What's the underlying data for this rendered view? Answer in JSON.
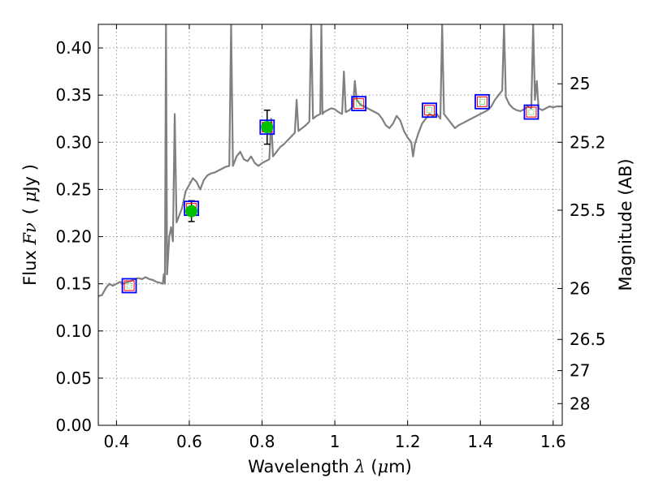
{
  "chart_data": {
    "type": "scatter",
    "xlabel": "Wavelength  λ (μm)",
    "ylabel": "Flux  Fν  ( μJy )",
    "ylabel_parts": {
      "prefix": "Flux ",
      "symbol": "Fν",
      "unit_open": "( ",
      "mu": "μ",
      "unit_rest": "Jy )"
    },
    "xlabel_parts": {
      "prefix": "Wavelength  ",
      "symbol": "λ",
      "unit_open": " (",
      "mu": "μ",
      "unit_rest": "m)"
    },
    "y2label": "Magnitude (AB)",
    "xlim": [
      0.35,
      1.625
    ],
    "ylim": [
      0.0,
      0.425
    ],
    "grid": true,
    "x_ticks": [
      {
        "value": 0.4,
        "label": "0.4"
      },
      {
        "value": 0.6,
        "label": "0.6"
      },
      {
        "value": 0.8,
        "label": "0.8"
      },
      {
        "value": 1.0,
        "label": "1"
      },
      {
        "value": 1.2,
        "label": "1.2"
      },
      {
        "value": 1.4,
        "label": "1.4"
      },
      {
        "value": 1.6,
        "label": "1.6"
      }
    ],
    "y_ticks": [
      {
        "value": 0.0,
        "label": "0.00"
      },
      {
        "value": 0.05,
        "label": "0.05"
      },
      {
        "value": 0.1,
        "label": "0.10"
      },
      {
        "value": 0.15,
        "label": "0.15"
      },
      {
        "value": 0.2,
        "label": "0.20"
      },
      {
        "value": 0.25,
        "label": "0.25"
      },
      {
        "value": 0.3,
        "label": "0.30"
      },
      {
        "value": 0.35,
        "label": "0.35"
      },
      {
        "value": 0.4,
        "label": "0.40"
      }
    ],
    "magnitude_ticks": [
      {
        "flux": 0.362,
        "label": "25"
      },
      {
        "flux": 0.3,
        "label": "25.2"
      },
      {
        "flux": 0.228,
        "label": "25.5"
      },
      {
        "flux": 0.145,
        "label": "26"
      },
      {
        "flux": 0.091,
        "label": "26.5"
      },
      {
        "flux": 0.058,
        "label": "27"
      },
      {
        "flux": 0.023,
        "label": "28"
      }
    ],
    "photometry": [
      {
        "wavelength": 0.435,
        "flux": 0.148,
        "error": 0.0,
        "detected": false
      },
      {
        "wavelength": 0.606,
        "flux": 0.227,
        "error": 0.011,
        "detected": true
      },
      {
        "wavelength": 0.814,
        "flux": 0.316,
        "error": 0.018,
        "detected": true
      },
      {
        "wavelength": 1.066,
        "flux": 0.341,
        "error": 0.0,
        "detected": false
      },
      {
        "wavelength": 1.26,
        "flux": 0.334,
        "error": 0.0,
        "detected": false
      },
      {
        "wavelength": 1.405,
        "flux": 0.343,
        "error": 0.0,
        "detected": false
      },
      {
        "wavelength": 1.54,
        "flux": 0.332,
        "error": 0.0,
        "detected": false
      }
    ],
    "model_flux": [
      {
        "wavelength": 0.435,
        "flux": 0.148
      },
      {
        "wavelength": 0.606,
        "flux": 0.23
      },
      {
        "wavelength": 0.814,
        "flux": 0.316
      },
      {
        "wavelength": 1.066,
        "flux": 0.341
      },
      {
        "wavelength": 1.26,
        "flux": 0.334
      },
      {
        "wavelength": 1.405,
        "flux": 0.343
      },
      {
        "wavelength": 1.54,
        "flux": 0.332
      }
    ],
    "spectrum": [
      [
        0.35,
        0.137
      ],
      [
        0.36,
        0.138
      ],
      [
        0.37,
        0.145
      ],
      [
        0.38,
        0.15
      ],
      [
        0.39,
        0.148
      ],
      [
        0.4,
        0.15
      ],
      [
        0.41,
        0.152
      ],
      [
        0.42,
        0.15
      ],
      [
        0.43,
        0.152
      ],
      [
        0.44,
        0.153
      ],
      [
        0.45,
        0.155
      ],
      [
        0.46,
        0.156
      ],
      [
        0.47,
        0.155
      ],
      [
        0.48,
        0.157
      ],
      [
        0.49,
        0.155
      ],
      [
        0.5,
        0.154
      ],
      [
        0.51,
        0.152
      ],
      [
        0.52,
        0.151
      ],
      [
        0.527,
        0.15
      ],
      [
        0.53,
        0.16
      ],
      [
        0.533,
        0.15
      ],
      [
        0.536,
        0.425
      ],
      [
        0.539,
        0.16
      ],
      [
        0.545,
        0.2
      ],
      [
        0.55,
        0.21
      ],
      [
        0.555,
        0.195
      ],
      [
        0.56,
        0.33
      ],
      [
        0.565,
        0.215
      ],
      [
        0.57,
        0.22
      ],
      [
        0.58,
        0.23
      ],
      [
        0.59,
        0.248
      ],
      [
        0.6,
        0.255
      ],
      [
        0.61,
        0.262
      ],
      [
        0.62,
        0.258
      ],
      [
        0.63,
        0.25
      ],
      [
        0.64,
        0.26
      ],
      [
        0.65,
        0.265
      ],
      [
        0.66,
        0.267
      ],
      [
        0.67,
        0.268
      ],
      [
        0.68,
        0.27
      ],
      [
        0.69,
        0.272
      ],
      [
        0.7,
        0.274
      ],
      [
        0.71,
        0.275
      ],
      [
        0.715,
        0.425
      ],
      [
        0.72,
        0.275
      ],
      [
        0.73,
        0.285
      ],
      [
        0.74,
        0.29
      ],
      [
        0.75,
        0.282
      ],
      [
        0.76,
        0.28
      ],
      [
        0.77,
        0.285
      ],
      [
        0.78,
        0.278
      ],
      [
        0.79,
        0.275
      ],
      [
        0.8,
        0.278
      ],
      [
        0.81,
        0.28
      ],
      [
        0.82,
        0.282
      ],
      [
        0.825,
        0.325
      ],
      [
        0.83,
        0.285
      ],
      [
        0.84,
        0.29
      ],
      [
        0.85,
        0.295
      ],
      [
        0.86,
        0.298
      ],
      [
        0.87,
        0.302
      ],
      [
        0.88,
        0.306
      ],
      [
        0.89,
        0.31
      ],
      [
        0.895,
        0.345
      ],
      [
        0.9,
        0.312
      ],
      [
        0.91,
        0.315
      ],
      [
        0.92,
        0.318
      ],
      [
        0.93,
        0.322
      ],
      [
        0.935,
        0.425
      ],
      [
        0.94,
        0.325
      ],
      [
        0.95,
        0.328
      ],
      [
        0.96,
        0.33
      ],
      [
        0.963,
        0.425
      ],
      [
        0.966,
        0.33
      ],
      [
        0.97,
        0.332
      ],
      [
        0.98,
        0.334
      ],
      [
        0.99,
        0.336
      ],
      [
        1.0,
        0.335
      ],
      [
        1.01,
        0.332
      ],
      [
        1.02,
        0.33
      ],
      [
        1.025,
        0.375
      ],
      [
        1.03,
        0.332
      ],
      [
        1.04,
        0.334
      ],
      [
        1.05,
        0.338
      ],
      [
        1.055,
        0.365
      ],
      [
        1.06,
        0.345
      ],
      [
        1.07,
        0.34
      ],
      [
        1.08,
        0.338
      ],
      [
        1.09,
        0.336
      ],
      [
        1.1,
        0.334
      ],
      [
        1.11,
        0.332
      ],
      [
        1.12,
        0.33
      ],
      [
        1.13,
        0.325
      ],
      [
        1.14,
        0.318
      ],
      [
        1.15,
        0.315
      ],
      [
        1.16,
        0.32
      ],
      [
        1.17,
        0.328
      ],
      [
        1.18,
        0.323
      ],
      [
        1.19,
        0.312
      ],
      [
        1.2,
        0.305
      ],
      [
        1.21,
        0.3
      ],
      [
        1.215,
        0.285
      ],
      [
        1.22,
        0.298
      ],
      [
        1.23,
        0.31
      ],
      [
        1.24,
        0.32
      ],
      [
        1.25,
        0.325
      ],
      [
        1.26,
        0.33
      ],
      [
        1.27,
        0.328
      ],
      [
        1.28,
        0.33
      ],
      [
        1.29,
        0.325
      ],
      [
        1.295,
        0.425
      ],
      [
        1.3,
        0.33
      ],
      [
        1.31,
        0.325
      ],
      [
        1.32,
        0.32
      ],
      [
        1.33,
        0.315
      ],
      [
        1.34,
        0.318
      ],
      [
        1.35,
        0.32
      ],
      [
        1.36,
        0.322
      ],
      [
        1.37,
        0.324
      ],
      [
        1.38,
        0.326
      ],
      [
        1.39,
        0.328
      ],
      [
        1.4,
        0.33
      ],
      [
        1.41,
        0.332
      ],
      [
        1.42,
        0.334
      ],
      [
        1.43,
        0.338
      ],
      [
        1.44,
        0.345
      ],
      [
        1.45,
        0.35
      ],
      [
        1.46,
        0.355
      ],
      [
        1.465,
        0.425
      ],
      [
        1.47,
        0.348
      ],
      [
        1.48,
        0.34
      ],
      [
        1.49,
        0.336
      ],
      [
        1.5,
        0.334
      ],
      [
        1.51,
        0.333
      ],
      [
        1.52,
        0.335
      ],
      [
        1.53,
        0.338
      ],
      [
        1.54,
        0.336
      ],
      [
        1.545,
        0.425
      ],
      [
        1.55,
        0.345
      ],
      [
        1.555,
        0.365
      ],
      [
        1.56,
        0.336
      ],
      [
        1.57,
        0.334
      ],
      [
        1.58,
        0.336
      ],
      [
        1.59,
        0.338
      ],
      [
        1.6,
        0.337
      ],
      [
        1.61,
        0.338
      ],
      [
        1.625,
        0.338
      ]
    ],
    "colors": {
      "spectrum": "#808080",
      "detection": "#00c000",
      "observed_box": "#0000ff",
      "model_box": "#ff0000",
      "errorbar": "#000000",
      "grid": "#999999"
    }
  }
}
